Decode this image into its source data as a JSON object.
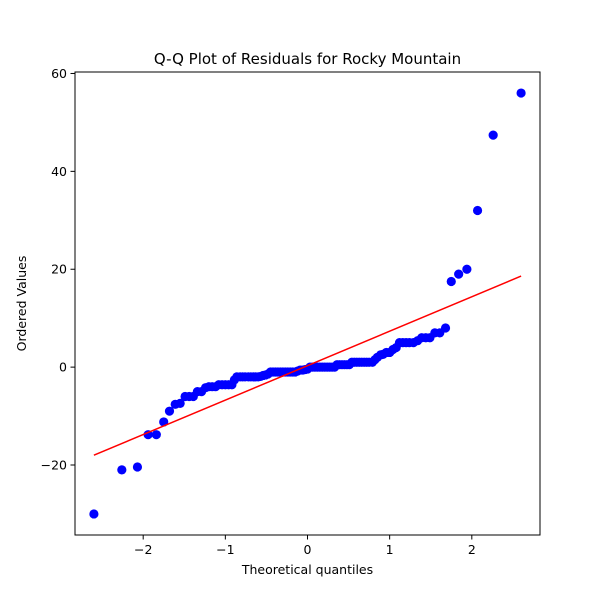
{
  "chart_data": {
    "type": "scatter",
    "title": "Q-Q Plot of Residuals for Rocky Mountain",
    "xlabel": "Theoretical quantiles",
    "ylabel": "Ordered Values",
    "xlim": [
      -2.83,
      2.83
    ],
    "ylim": [
      -34.3,
      60.3
    ],
    "x_ticks": [
      -2,
      -1,
      0,
      1,
      2
    ],
    "y_ticks": [
      -20,
      0,
      20,
      40,
      60
    ],
    "x_tick_labels": [
      "−2",
      "−1",
      "0",
      "1",
      "2"
    ],
    "y_tick_labels": [
      "−20",
      "0",
      "20",
      "40",
      "60"
    ],
    "grid": false,
    "points_color": "#0000ff",
    "fit_line_color": "#ff0000",
    "fit_line": {
      "x": [
        -2.6,
        2.6
      ],
      "y": [
        -18,
        18.6
      ]
    },
    "points": [
      [
        -2.6,
        -30.0
      ],
      [
        -2.26,
        -21.0
      ],
      [
        -2.07,
        -20.4
      ],
      [
        -1.94,
        -13.8
      ],
      [
        -1.84,
        -13.8
      ],
      [
        -1.75,
        -11.2
      ],
      [
        -1.68,
        -9.0
      ],
      [
        -1.61,
        -7.6
      ],
      [
        -1.55,
        -7.4
      ],
      [
        -1.49,
        -6.0
      ],
      [
        -1.44,
        -6.0
      ],
      [
        -1.39,
        -6.0
      ],
      [
        -1.34,
        -5.0
      ],
      [
        -1.29,
        -5.0
      ],
      [
        -1.24,
        -4.2
      ],
      [
        -1.2,
        -4.0
      ],
      [
        -1.16,
        -4.0
      ],
      [
        -1.12,
        -4.0
      ],
      [
        -1.08,
        -3.6
      ],
      [
        -1.04,
        -3.6
      ],
      [
        -1.0,
        -3.6
      ],
      [
        -0.96,
        -3.6
      ],
      [
        -0.92,
        -3.6
      ],
      [
        -0.89,
        -2.6
      ],
      [
        -0.86,
        -2.0
      ],
      [
        -0.82,
        -2.0
      ],
      [
        -0.79,
        -2.0
      ],
      [
        -0.76,
        -2.0
      ],
      [
        -0.72,
        -2.0
      ],
      [
        -0.69,
        -2.0
      ],
      [
        -0.66,
        -2.0
      ],
      [
        -0.63,
        -2.0
      ],
      [
        -0.6,
        -2.0
      ],
      [
        -0.57,
        -1.9
      ],
      [
        -0.54,
        -1.7
      ],
      [
        -0.51,
        -1.6
      ],
      [
        -0.48,
        -1.4
      ],
      [
        -0.45,
        -1.0
      ],
      [
        -0.42,
        -1.0
      ],
      [
        -0.39,
        -1.0
      ],
      [
        -0.36,
        -1.0
      ],
      [
        -0.33,
        -1.0
      ],
      [
        -0.3,
        -1.0
      ],
      [
        -0.27,
        -1.0
      ],
      [
        -0.24,
        -1.0
      ],
      [
        -0.21,
        -1.0
      ],
      [
        -0.18,
        -1.0
      ],
      [
        -0.15,
        -1.0
      ],
      [
        -0.12,
        -0.8
      ],
      [
        -0.09,
        -0.6
      ],
      [
        -0.06,
        -0.6
      ],
      [
        -0.03,
        -0.5
      ],
      [
        0.0,
        -0.4
      ],
      [
        0.03,
        0.0
      ],
      [
        0.06,
        0.0
      ],
      [
        0.09,
        0.0
      ],
      [
        0.12,
        0.0
      ],
      [
        0.15,
        0.0
      ],
      [
        0.18,
        0.0
      ],
      [
        0.21,
        0.0
      ],
      [
        0.24,
        0.0
      ],
      [
        0.27,
        0.0
      ],
      [
        0.3,
        0.0
      ],
      [
        0.33,
        0.0
      ],
      [
        0.36,
        0.5
      ],
      [
        0.39,
        0.5
      ],
      [
        0.42,
        0.5
      ],
      [
        0.45,
        0.5
      ],
      [
        0.48,
        0.5
      ],
      [
        0.51,
        0.5
      ],
      [
        0.54,
        1.0
      ],
      [
        0.57,
        1.0
      ],
      [
        0.6,
        1.0
      ],
      [
        0.63,
        1.0
      ],
      [
        0.66,
        1.0
      ],
      [
        0.69,
        1.0
      ],
      [
        0.72,
        1.0
      ],
      [
        0.75,
        1.0
      ],
      [
        0.79,
        1.0
      ],
      [
        0.82,
        1.5
      ],
      [
        0.85,
        2.0
      ],
      [
        0.89,
        2.5
      ],
      [
        0.92,
        2.6
      ],
      [
        0.96,
        3.0
      ],
      [
        1.0,
        3.0
      ],
      [
        1.04,
        3.6
      ],
      [
        1.08,
        4.0
      ],
      [
        1.12,
        5.0
      ],
      [
        1.16,
        5.0
      ],
      [
        1.2,
        5.0
      ],
      [
        1.24,
        5.0
      ],
      [
        1.29,
        5.0
      ],
      [
        1.34,
        5.4
      ],
      [
        1.39,
        6.0
      ],
      [
        1.44,
        6.0
      ],
      [
        1.49,
        6.0
      ],
      [
        1.55,
        7.0
      ],
      [
        1.61,
        7.0
      ],
      [
        1.68,
        8.0
      ],
      [
        1.75,
        17.5
      ],
      [
        1.84,
        19.0
      ],
      [
        1.94,
        20.0
      ],
      [
        2.07,
        32.0
      ],
      [
        2.26,
        47.4
      ],
      [
        2.6,
        56.0
      ]
    ]
  }
}
